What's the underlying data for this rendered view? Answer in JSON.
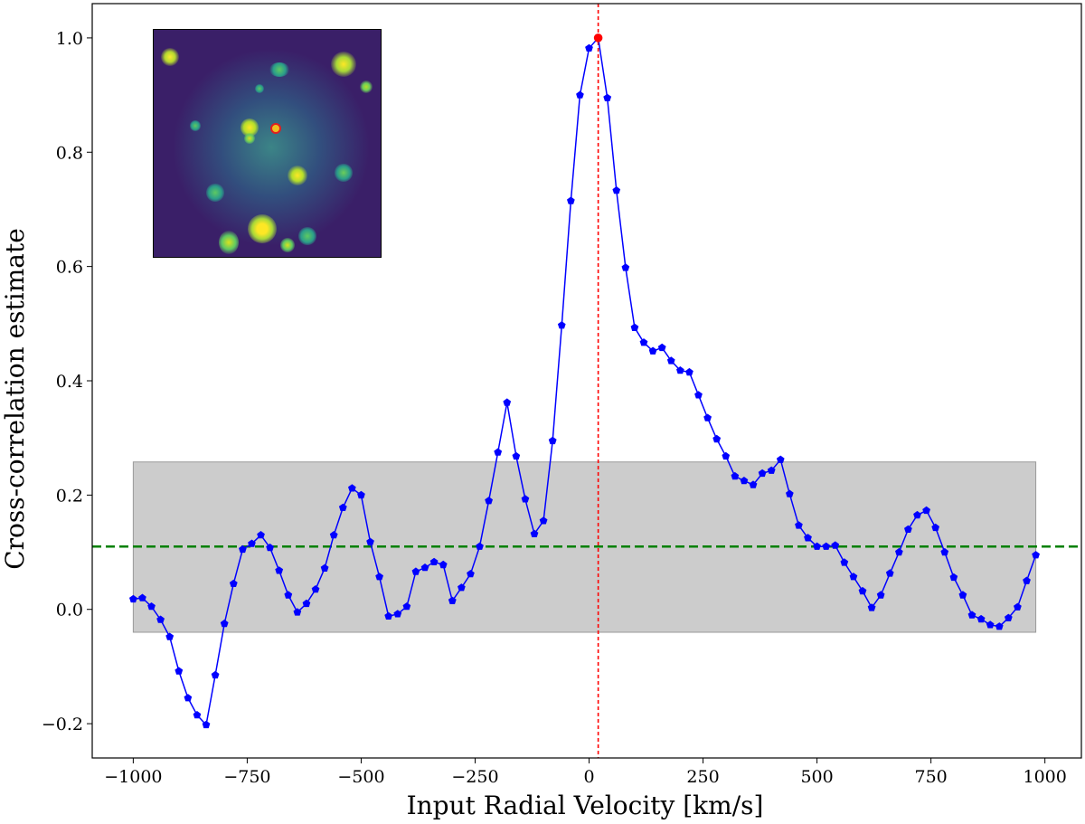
{
  "chart_data": {
    "type": "line",
    "xlabel": "Input Radial Velocity [km/s]",
    "ylabel": "Cross-correlation estimate",
    "xlim": [
      -1090,
      1080
    ],
    "ylim": [
      -0.26,
      1.06
    ],
    "xticks": [
      -1000,
      -750,
      -500,
      -250,
      0,
      250,
      500,
      750,
      1000
    ],
    "xtick_labels": [
      "−1000",
      "−750",
      "−500",
      "−250",
      "0",
      "250",
      "500",
      "750",
      "1000"
    ],
    "yticks": [
      -0.2,
      0.0,
      0.2,
      0.4,
      0.6,
      0.8,
      1.0
    ],
    "ytick_labels": [
      "−0.2",
      "0.0",
      "0.2",
      "0.4",
      "0.6",
      "0.8",
      "1.0"
    ],
    "series": [
      {
        "color": "#0000ff",
        "x": [
          -1000,
          -980,
          -960,
          -940,
          -920,
          -900,
          -880,
          -860,
          -840,
          -820,
          -800,
          -780,
          -760,
          -740,
          -720,
          -700,
          -680,
          -660,
          -640,
          -620,
          -600,
          -580,
          -560,
          -540,
          -520,
          -500,
          -480,
          -460,
          -440,
          -420,
          -400,
          -380,
          -360,
          -340,
          -320,
          -300,
          -280,
          -260,
          -240,
          -220,
          -200,
          -180,
          -160,
          -140,
          -120,
          -100,
          -80,
          -60,
          -40,
          -20,
          0,
          20,
          40,
          60,
          80,
          100,
          120,
          140,
          160,
          180,
          200,
          220,
          240,
          260,
          280,
          300,
          320,
          340,
          360,
          380,
          400,
          420,
          440,
          460,
          480,
          500,
          520,
          540,
          560,
          580,
          600,
          620,
          640,
          660,
          680,
          700,
          720,
          740,
          760,
          780,
          800,
          820,
          840,
          860,
          880,
          900,
          920,
          940,
          960,
          980
        ],
        "y": [
          0.018,
          0.02,
          0.005,
          -0.018,
          -0.048,
          -0.108,
          -0.155,
          -0.185,
          -0.202,
          -0.115,
          -0.025,
          0.045,
          0.105,
          0.115,
          0.13,
          0.108,
          0.068,
          0.025,
          -0.005,
          0.01,
          0.035,
          0.072,
          0.13,
          0.178,
          0.212,
          0.2,
          0.118,
          0.057,
          -0.012,
          -0.008,
          0.005,
          0.066,
          0.073,
          0.083,
          0.078,
          0.015,
          0.038,
          0.062,
          0.11,
          0.19,
          0.275,
          0.362,
          0.268,
          0.193,
          0.132,
          0.155,
          0.295,
          0.497,
          0.715,
          0.9,
          0.982,
          1.0,
          0.895,
          0.733,
          0.598,
          0.493,
          0.467,
          0.452,
          0.458,
          0.435,
          0.418,
          0.415,
          0.375,
          0.335,
          0.298,
          0.268,
          0.233,
          0.225,
          0.218,
          0.238,
          0.243,
          0.262,
          0.202,
          0.147,
          0.125,
          0.11,
          0.11,
          0.112,
          0.082,
          0.057,
          0.032,
          0.003,
          0.025,
          0.063,
          0.1,
          0.14,
          0.165,
          0.173,
          0.143,
          0.1,
          0.056,
          0.025,
          -0.01,
          -0.017,
          -0.027,
          -0.03,
          -0.015,
          0.004,
          0.05,
          0.095
        ]
      }
    ],
    "peak_point": {
      "x": 20,
      "y": 1.0,
      "color": "#ff0000"
    },
    "peak_line": {
      "x": 20,
      "color": "#ff0000",
      "style": "dotted"
    },
    "threshold_line": {
      "y": 0.11,
      "color": "#008000",
      "style": "dashed"
    },
    "shaded_band": {
      "x": [
        -1000,
        980
      ],
      "y": [
        -0.04,
        0.258
      ],
      "color": "#cccccc"
    },
    "grid": false,
    "inset_image": "false-color image cutout with bright yellow point sources and a red circle marker near the center"
  }
}
